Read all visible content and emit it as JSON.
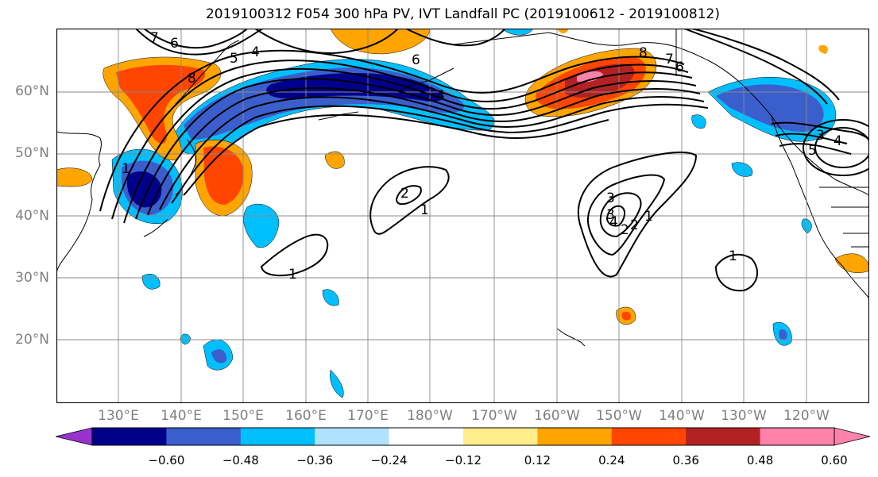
{
  "title": "2019100312 F054 300 hPa PV, IVT Landfall PC (2019100612 - 2019100812)",
  "lat_labels": [
    "60°N",
    "50°N",
    "40°N",
    "30°N",
    "20°N"
  ],
  "lon_labels": [
    "130°E",
    "140°E",
    "150°E",
    "160°E",
    "170°E",
    "180°W",
    "170°W",
    "160°W",
    "150°W",
    "140°W",
    "130°W",
    "120°W"
  ],
  "contour_labels": [
    "7",
    "6",
    "5",
    "4",
    "8",
    "6",
    "4",
    "8",
    "7",
    "6",
    "2",
    "1",
    "1",
    "2",
    "3",
    "4",
    "3",
    "2",
    "1",
    "1",
    "1",
    "3",
    "4",
    "5"
  ],
  "colorbar": {
    "ticks": [
      "−0.60",
      "−0.48",
      "−0.36",
      "−0.24",
      "−0.12",
      "0.12",
      "0.24",
      "0.36",
      "0.48",
      "0.60"
    ],
    "colors": [
      "#9932cc",
      "#00008b",
      "#3a5fcd",
      "#00bfff",
      "#b0e2ff",
      "#ffffff",
      "#ffec8b",
      "#ffa500",
      "#ff4500",
      "#b22222",
      "#ff82ab",
      "#ff82ab"
    ]
  },
  "fill_colors": {
    "neg1": "#b0e2ff",
    "neg2": "#00bfff",
    "neg3": "#3a5fcd",
    "neg4": "#00008b",
    "pos1": "#ffec8b",
    "pos2": "#ffa500",
    "pos3": "#ff4500",
    "pos4": "#b22222",
    "pos5": "#ff82ab"
  }
}
